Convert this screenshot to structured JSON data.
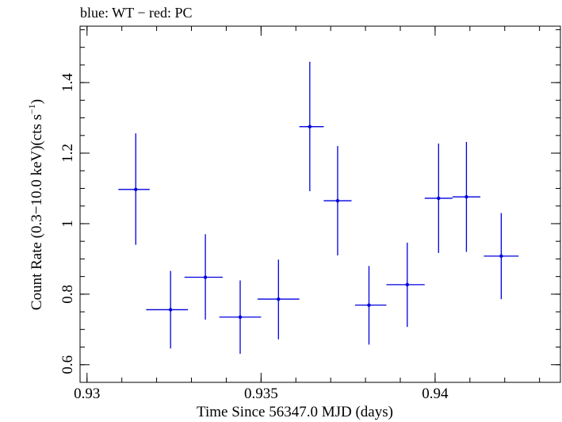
{
  "chart_data": {
    "type": "scatter",
    "title": "blue: WT − red: PC",
    "xlabel": "Time Since 56347.0 MJD (days)",
    "ylabel_main": "Count Rate (0.3−10.0 keV)(cts s",
    "ylabel_sup": "−1",
    "ylabel_close": ")",
    "xlim": [
      0.9298,
      0.9436
    ],
    "ylim": [
      0.55,
      1.56
    ],
    "x_ticks": [
      {
        "value": 0.93,
        "label": "0.93"
      },
      {
        "value": 0.935,
        "label": "0.935"
      },
      {
        "value": 0.94,
        "label": "0.94"
      }
    ],
    "x_minor_step": 0.001,
    "y_ticks": [
      {
        "value": 0.6,
        "label": "0.6"
      },
      {
        "value": 0.8,
        "label": "0.8"
      },
      {
        "value": 1.0,
        "label": "1"
      },
      {
        "value": 1.2,
        "label": "1.2"
      },
      {
        "value": 1.4,
        "label": "1.4"
      }
    ],
    "y_minor_step": 0.05,
    "grid": false,
    "series": [
      {
        "color": "#0000dd",
        "points": [
          {
            "x": 0.9314,
            "y": 1.097,
            "xlo": 0.9309,
            "xhi": 0.9318,
            "ylo": 0.94,
            "yhi": 1.256
          },
          {
            "x": 0.9324,
            "y": 0.756,
            "xlo": 0.9317,
            "xhi": 0.9329,
            "ylo": 0.646,
            "yhi": 0.866
          },
          {
            "x": 0.9334,
            "y": 0.848,
            "xlo": 0.9328,
            "xhi": 0.9339,
            "ylo": 0.728,
            "yhi": 0.97
          },
          {
            "x": 0.9344,
            "y": 0.735,
            "xlo": 0.9338,
            "xhi": 0.935,
            "ylo": 0.631,
            "yhi": 0.839
          },
          {
            "x": 0.9355,
            "y": 0.786,
            "xlo": 0.9349,
            "xhi": 0.9361,
            "ylo": 0.672,
            "yhi": 0.898
          },
          {
            "x": 0.9364,
            "y": 1.275,
            "xlo": 0.9361,
            "xhi": 0.9368,
            "ylo": 1.092,
            "yhi": 1.459
          },
          {
            "x": 0.9372,
            "y": 1.065,
            "xlo": 0.9368,
            "xhi": 0.9376,
            "ylo": 0.91,
            "yhi": 1.22
          },
          {
            "x": 0.9381,
            "y": 0.769,
            "xlo": 0.9377,
            "xhi": 0.9386,
            "ylo": 0.657,
            "yhi": 0.88
          },
          {
            "x": 0.9392,
            "y": 0.827,
            "xlo": 0.9386,
            "xhi": 0.9397,
            "ylo": 0.707,
            "yhi": 0.946
          },
          {
            "x": 0.9401,
            "y": 1.072,
            "xlo": 0.9397,
            "xhi": 0.9405,
            "ylo": 0.917,
            "yhi": 1.227
          },
          {
            "x": 0.9409,
            "y": 1.076,
            "xlo": 0.9405,
            "xhi": 0.9413,
            "ylo": 0.92,
            "yhi": 1.232
          },
          {
            "x": 0.9419,
            "y": 0.908,
            "xlo": 0.9414,
            "xhi": 0.9424,
            "ylo": 0.786,
            "yhi": 1.03
          }
        ]
      }
    ]
  }
}
